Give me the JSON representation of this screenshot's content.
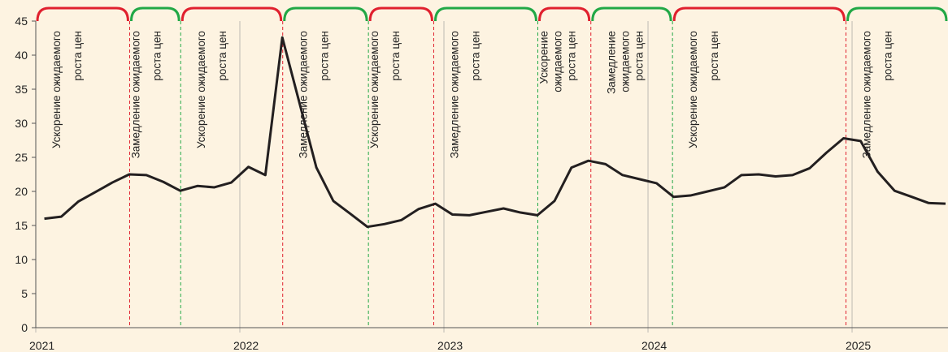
{
  "chart_data": {
    "type": "line",
    "xlim": [
      2021,
      2025.47
    ],
    "xticks": [
      2021,
      2022,
      2023,
      2024,
      2025
    ],
    "ylim": [
      0,
      45
    ],
    "yticks": [
      0,
      5,
      10,
      15,
      20,
      25,
      30,
      35,
      40,
      45
    ],
    "x": [
      2021.042,
      2021.125,
      2021.208,
      2021.292,
      2021.375,
      2021.458,
      2021.542,
      2021.625,
      2021.708,
      2021.792,
      2021.875,
      2021.958,
      2022.042,
      2022.125,
      2022.208,
      2022.292,
      2022.375,
      2022.458,
      2022.542,
      2022.625,
      2022.708,
      2022.792,
      2022.875,
      2022.958,
      2023.042,
      2023.125,
      2023.208,
      2023.292,
      2023.375,
      2023.458,
      2023.542,
      2023.625,
      2023.708,
      2023.792,
      2023.875,
      2023.958,
      2024.042,
      2024.125,
      2024.208,
      2024.292,
      2024.375,
      2024.458,
      2024.542,
      2024.625,
      2024.708,
      2024.792,
      2024.875,
      2024.958,
      2025.042,
      2025.125,
      2025.208,
      2025.292,
      2025.375,
      2025.458
    ],
    "series": [
      {
        "color": "#231f20",
        "values": [
          16.0,
          16.3,
          18.5,
          19.9,
          21.3,
          22.5,
          22.4,
          21.4,
          20.1,
          20.8,
          20.6,
          21.3,
          23.6,
          22.4,
          42.6,
          33.0,
          23.5,
          18.6,
          16.7,
          14.8,
          15.2,
          15.8,
          17.4,
          18.2,
          16.6,
          16.5,
          17.0,
          17.5,
          16.9,
          16.5,
          18.6,
          23.5,
          24.5,
          24.0,
          22.4,
          21.8,
          21.2,
          19.2,
          19.4,
          20.0,
          20.6,
          22.4,
          22.5,
          22.2,
          22.4,
          23.4,
          25.7,
          27.8,
          27.4,
          22.9,
          20.1,
          19.2,
          18.3,
          18.2
        ]
      }
    ],
    "phases": [
      {
        "end": 2021.46,
        "color": "#e0202e",
        "label": [
          "Ускорение ожидаемого",
          "роста цен"
        ]
      },
      {
        "end": 2021.71,
        "color": "#21a846",
        "label": [
          "Замедление ожидаемого",
          "роста цен"
        ]
      },
      {
        "end": 2022.21,
        "color": "#e0202e",
        "label": [
          "Ускорение ожидаемого",
          "роста цен"
        ]
      },
      {
        "end": 2022.63,
        "color": "#21a846",
        "label": [
          "Замедление ожидаемого",
          "роста цен"
        ]
      },
      {
        "end": 2022.95,
        "color": "#e0202e",
        "label": [
          "Ускорение ожидаемого",
          "роста цен"
        ]
      },
      {
        "end": 2023.46,
        "color": "#21a846",
        "label": [
          "Замедление ожидаемого",
          "роста цен"
        ]
      },
      {
        "end": 2023.72,
        "color": "#e0202e",
        "label": [
          "Ускорение",
          "ожидаемого",
          "роста цен"
        ]
      },
      {
        "end": 2024.12,
        "color": "#21a846",
        "label": [
          "Замедление",
          "ожидаемого",
          "роста цен"
        ]
      },
      {
        "end": 2024.97,
        "color": "#e0202e",
        "label": [
          "Ускорение ожидаемого",
          "роста цен"
        ]
      },
      {
        "end": 2025.47,
        "color": "#21a846",
        "label": [
          "Замедление ожидаемого",
          "роста цен"
        ]
      }
    ]
  }
}
